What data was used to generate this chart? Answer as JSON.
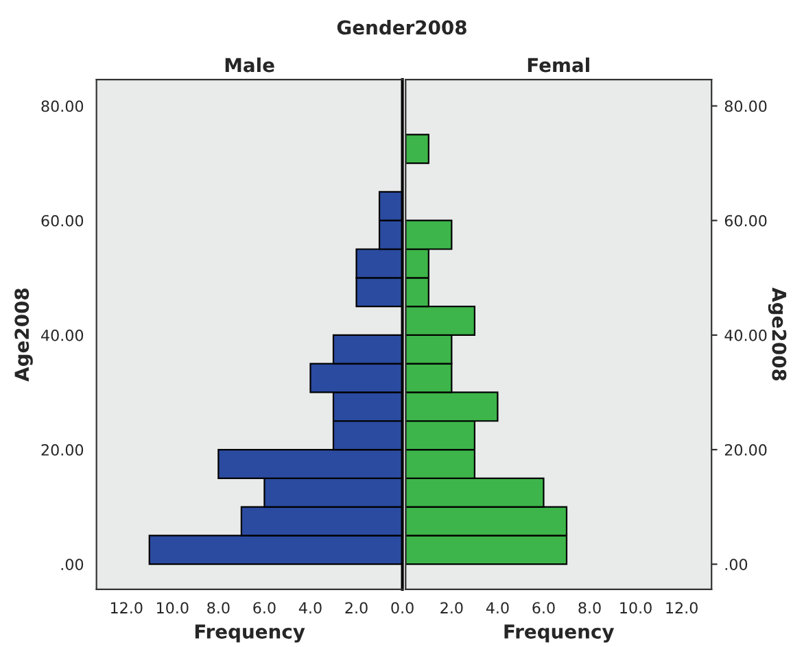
{
  "chart_data": [
    {
      "type": "histogram",
      "title": "Gender2008",
      "subtitle": "Male",
      "orientation": "horizontal",
      "xlabel": "Frequency",
      "ylabel": "Age2008",
      "color": "#2b4ba0",
      "bins": [
        0,
        5,
        10,
        15,
        20,
        25,
        30,
        35,
        40,
        45,
        50,
        55,
        60,
        65
      ],
      "values": [
        11,
        7,
        6,
        8,
        3,
        3,
        4,
        3,
        0,
        2,
        2,
        1,
        1
      ],
      "xlim": [
        13.3,
        0
      ],
      "xticks": [
        {
          "value": 12,
          "label": "12.0"
        },
        {
          "value": 10,
          "label": "10.0"
        },
        {
          "value": 8,
          "label": "8.0"
        },
        {
          "value": 6,
          "label": "6.0"
        },
        {
          "value": 4,
          "label": "4.0"
        },
        {
          "value": 2,
          "label": "2.0"
        },
        {
          "value": 0,
          "label": "0.0"
        }
      ],
      "ylim": [
        -4.4,
        84.6
      ],
      "yticks": [
        {
          "value": 0,
          "label": ".00"
        },
        {
          "value": 20,
          "label": "20.00"
        },
        {
          "value": 40,
          "label": "40.00"
        },
        {
          "value": 60,
          "label": "60.00"
        },
        {
          "value": 80,
          "label": "80.00"
        }
      ]
    },
    {
      "type": "histogram",
      "subtitle": "Femal",
      "orientation": "horizontal",
      "xlabel": "Frequency",
      "ylabel": "Age2008",
      "color": "#3db54a",
      "bins": [
        0,
        5,
        10,
        15,
        20,
        25,
        30,
        35,
        40,
        45,
        50,
        55,
        60,
        65,
        70,
        75
      ],
      "values": [
        7,
        7,
        6,
        3,
        3,
        4,
        2,
        2,
        3,
        1,
        1,
        2,
        0,
        0,
        1
      ],
      "xlim": [
        0,
        13.3
      ],
      "xticks": [
        {
          "value": 0,
          "label": null
        },
        {
          "value": 2,
          "label": "2.0"
        },
        {
          "value": 4,
          "label": "4.0"
        },
        {
          "value": 6,
          "label": "6.0"
        },
        {
          "value": 8,
          "label": "8.0"
        },
        {
          "value": 10,
          "label": "10.0"
        },
        {
          "value": 12,
          "label": "12.0"
        }
      ],
      "ylim": [
        -4.4,
        84.6
      ],
      "yticks": [
        {
          "value": 0,
          "label": ".00"
        },
        {
          "value": 20,
          "label": "20.00"
        },
        {
          "value": 40,
          "label": "40.00"
        },
        {
          "value": 60,
          "label": "60.00"
        },
        {
          "value": 80,
          "label": "80.00"
        }
      ]
    }
  ]
}
